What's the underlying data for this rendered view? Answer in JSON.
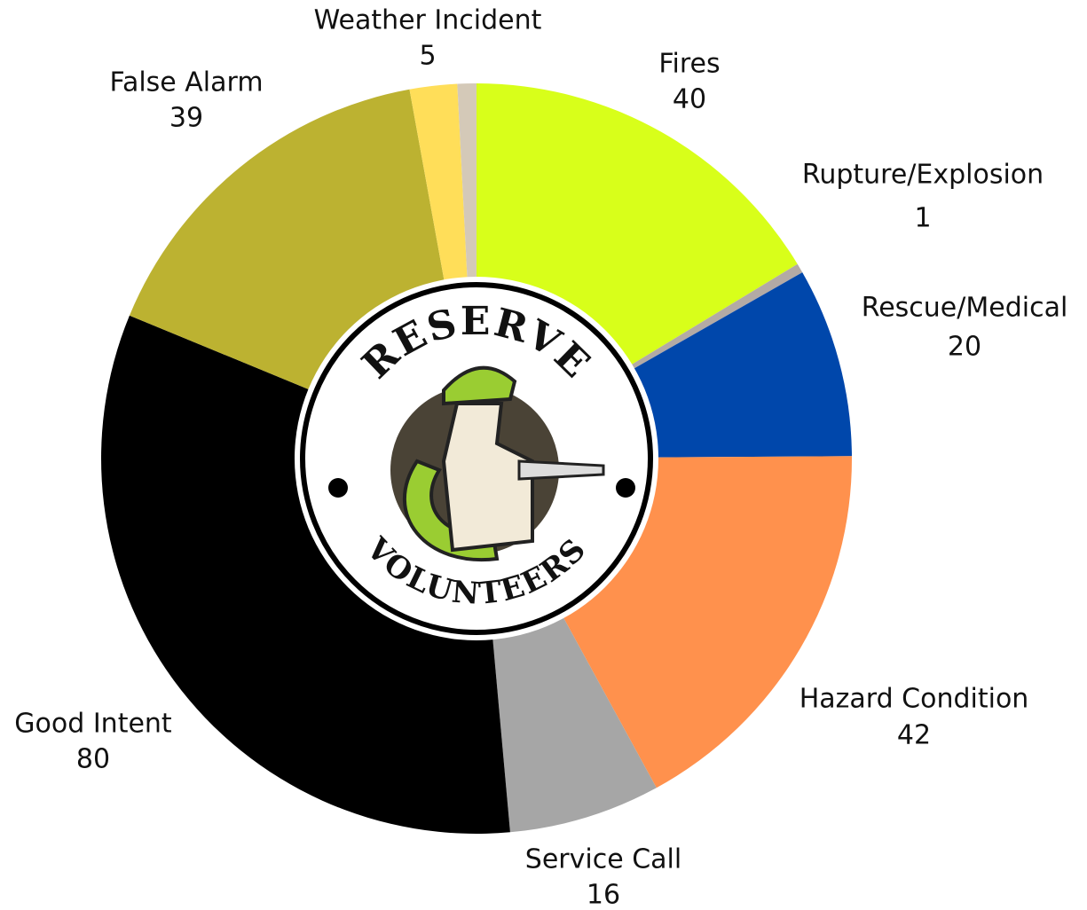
{
  "chart_data": {
    "type": "donut",
    "categories": [
      "Fires",
      "Rupture/Explosion",
      "Rescue/Medical",
      "Hazard Condition",
      "Service Call",
      "Good Intent",
      "False Alarm",
      "Weather Incident",
      null
    ],
    "values": [
      40,
      1,
      20,
      42,
      16,
      80,
      39,
      5,
      2
    ],
    "colors": [
      "#d8ff1a",
      "#b3aaa5",
      "#0047ab",
      "#ff914d",
      "#a6a6a6",
      "#000000",
      "#bcb231",
      "#ffde59",
      "#d4c9b8"
    ],
    "logo_text": {
      "top": "RESERVE",
      "bottom": "VOLUNTEERS"
    }
  }
}
